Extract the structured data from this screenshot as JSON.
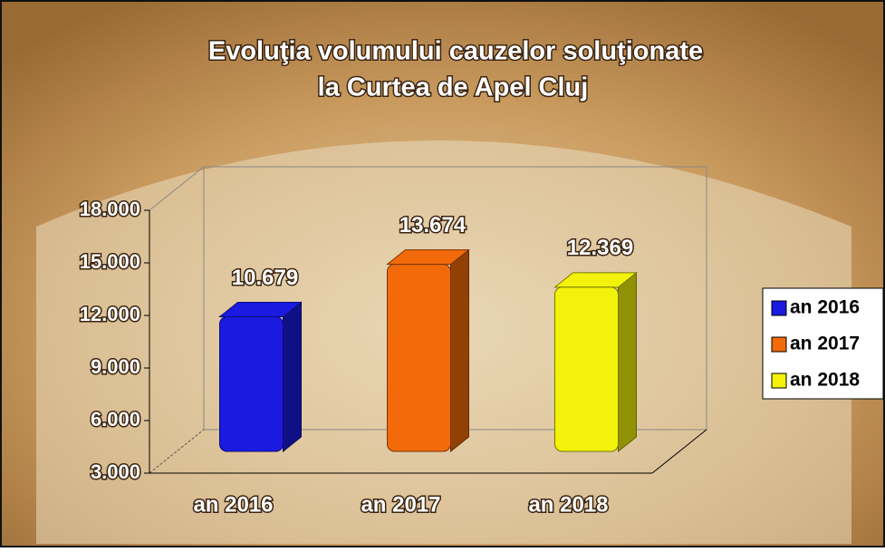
{
  "chart_data": {
    "type": "bar3d",
    "title": [
      "Evoluţia volumului cauzelor soluţionate",
      "la  Curtea de Apel Cluj"
    ],
    "categories": [
      "an 2016",
      "an 2017",
      "an 2018"
    ],
    "values": [
      10679,
      13674,
      12369
    ],
    "value_labels": [
      "10.679",
      "13.674",
      "12.369"
    ],
    "colors": [
      "#1a1ae0",
      "#f26a0a",
      "#f2f20a"
    ],
    "ylim": [
      3000,
      18000
    ],
    "yticks": [
      {
        "value": 3000,
        "label": "3.000"
      },
      {
        "value": 6000,
        "label": "6.000"
      },
      {
        "value": 9000,
        "label": "9.000"
      },
      {
        "value": 12000,
        "label": "12.000"
      },
      {
        "value": 15000,
        "label": "15.000"
      },
      {
        "value": 18000,
        "label": "18.000"
      }
    ],
    "legend": "right"
  }
}
